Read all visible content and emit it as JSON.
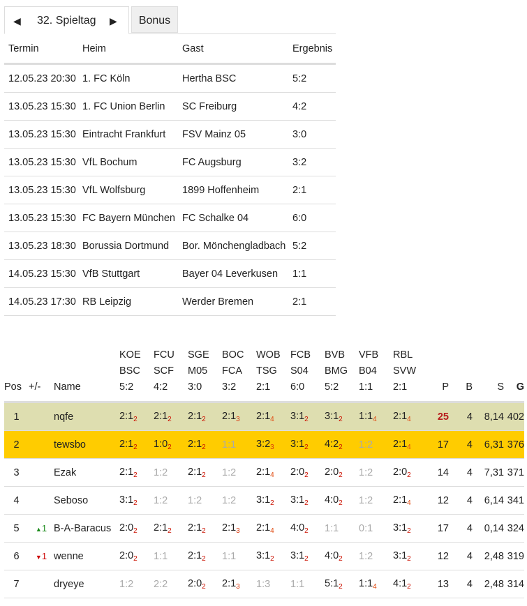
{
  "tabs": {
    "matchday": "32. Spieltag",
    "bonus": "Bonus",
    "prev_icon": "triangle-left",
    "next_icon": "triangle-right"
  },
  "matches": {
    "headers": [
      "Termin",
      "Heim",
      "Gast",
      "Ergebnis"
    ],
    "rows": [
      [
        "12.05.23 20:30",
        "1. FC Köln",
        "Hertha BSC",
        "5:2"
      ],
      [
        "13.05.23 15:30",
        "1. FC Union Berlin",
        "SC Freiburg",
        "4:2"
      ],
      [
        "13.05.23 15:30",
        "Eintracht Frankfurt",
        "FSV Mainz 05",
        "3:0"
      ],
      [
        "13.05.23 15:30",
        "VfL Bochum",
        "FC Augsburg",
        "3:2"
      ],
      [
        "13.05.23 15:30",
        "VfL Wolfsburg",
        "1899 Hoffenheim",
        "2:1"
      ],
      [
        "13.05.23 15:30",
        "FC Bayern München",
        "FC Schalke 04",
        "6:0"
      ],
      [
        "13.05.23 18:30",
        "Borussia Dortmund",
        "Bor. Mönchengladbach",
        "5:2"
      ],
      [
        "14.05.23 15:30",
        "VfB Stuttgart",
        "Bayer 04 Leverkusen",
        "1:1"
      ],
      [
        "14.05.23 17:30",
        "RB Leipzig",
        "Werder Bremen",
        "2:1"
      ]
    ]
  },
  "standings": {
    "headers": {
      "pos": "Pos",
      "diff": "+/-",
      "name": "Name",
      "p": "P",
      "b": "B",
      "s": "S",
      "g": "G"
    },
    "games": [
      [
        "KOE",
        "BSC",
        "5:2"
      ],
      [
        "FCU",
        "SCF",
        "4:2"
      ],
      [
        "SGE",
        "M05",
        "3:0"
      ],
      [
        "BOC",
        "FCA",
        "3:2"
      ],
      [
        "WOB",
        "TSG",
        "2:1"
      ],
      [
        "FCB",
        "S04",
        "6:0"
      ],
      [
        "BVB",
        "BMG",
        "5:2"
      ],
      [
        "VFB",
        "B04",
        "1:1"
      ],
      [
        "RBL",
        "SVW",
        "2:1"
      ]
    ],
    "points_colors": {
      "2": "#cc1100",
      "3": "#d83a10",
      "4": "#e04a10"
    },
    "row_colors": {
      "leader": "#dedeb0",
      "highlight": "#ffcc00",
      "leader_points": "#b71c1c"
    },
    "rows": [
      {
        "pos": "1",
        "diff": "",
        "dir": "",
        "name": "nqfe",
        "tips": [
          [
            "2:1",
            "2"
          ],
          [
            "2:1",
            "2"
          ],
          [
            "2:1",
            "2"
          ],
          [
            "2:1",
            "3"
          ],
          [
            "2:1",
            "4"
          ],
          [
            "3:1",
            "2"
          ],
          [
            "3:1",
            "2"
          ],
          [
            "1:1",
            "4"
          ],
          [
            "2:1",
            "4"
          ]
        ],
        "p": "25",
        "b": "4",
        "s": "8,14",
        "g": "402"
      },
      {
        "pos": "2",
        "diff": "",
        "dir": "",
        "name": "tewsbo",
        "tips": [
          [
            "2:1",
            "2"
          ],
          [
            "1:0",
            "2"
          ],
          [
            "2:1",
            "2"
          ],
          [
            "1:1",
            ""
          ],
          [
            "3:2",
            "3"
          ],
          [
            "3:1",
            "2"
          ],
          [
            "4:2",
            "2"
          ],
          [
            "1:2",
            ""
          ],
          [
            "2:1",
            "4"
          ]
        ],
        "p": "17",
        "b": "4",
        "s": "6,31",
        "g": "376"
      },
      {
        "pos": "3",
        "diff": "",
        "dir": "",
        "name": "Ezak",
        "tips": [
          [
            "2:1",
            "2"
          ],
          [
            "1:2",
            ""
          ],
          [
            "2:1",
            "2"
          ],
          [
            "1:2",
            ""
          ],
          [
            "2:1",
            "4"
          ],
          [
            "2:0",
            "2"
          ],
          [
            "2:0",
            "2"
          ],
          [
            "1:2",
            ""
          ],
          [
            "2:0",
            "2"
          ]
        ],
        "p": "14",
        "b": "4",
        "s": "7,31",
        "g": "371"
      },
      {
        "pos": "4",
        "diff": "",
        "dir": "",
        "name": "Seboso",
        "tips": [
          [
            "3:1",
            "2"
          ],
          [
            "1:2",
            ""
          ],
          [
            "1:2",
            ""
          ],
          [
            "1:2",
            ""
          ],
          [
            "3:1",
            "2"
          ],
          [
            "3:1",
            "2"
          ],
          [
            "4:0",
            "2"
          ],
          [
            "1:2",
            ""
          ],
          [
            "2:1",
            "4"
          ]
        ],
        "p": "12",
        "b": "4",
        "s": "6,14",
        "g": "341"
      },
      {
        "pos": "5",
        "diff": "1",
        "dir": "up",
        "name": "B-A-Baracus",
        "tips": [
          [
            "2:0",
            "2"
          ],
          [
            "2:1",
            "2"
          ],
          [
            "2:1",
            "2"
          ],
          [
            "2:1",
            "3"
          ],
          [
            "2:1",
            "4"
          ],
          [
            "4:0",
            "2"
          ],
          [
            "1:1",
            ""
          ],
          [
            "0:1",
            ""
          ],
          [
            "3:1",
            "2"
          ]
        ],
        "p": "17",
        "b": "4",
        "s": "0,14",
        "g": "324"
      },
      {
        "pos": "6",
        "diff": "1",
        "dir": "down",
        "name": "wenne",
        "tips": [
          [
            "2:0",
            "2"
          ],
          [
            "1:1",
            ""
          ],
          [
            "2:1",
            "2"
          ],
          [
            "1:1",
            ""
          ],
          [
            "3:1",
            "2"
          ],
          [
            "3:1",
            "2"
          ],
          [
            "4:0",
            "2"
          ],
          [
            "1:2",
            ""
          ],
          [
            "3:1",
            "2"
          ]
        ],
        "p": "12",
        "b": "4",
        "s": "2,48",
        "g": "319"
      },
      {
        "pos": "7",
        "diff": "",
        "dir": "",
        "name": "dryeye",
        "tips": [
          [
            "1:2",
            ""
          ],
          [
            "2:2",
            ""
          ],
          [
            "2:0",
            "2"
          ],
          [
            "2:1",
            "3"
          ],
          [
            "1:3",
            ""
          ],
          [
            "1:1",
            ""
          ],
          [
            "5:1",
            "2"
          ],
          [
            "1:1",
            "4"
          ],
          [
            "4:1",
            "2"
          ]
        ],
        "p": "13",
        "b": "4",
        "s": "2,48",
        "g": "314"
      }
    ]
  }
}
